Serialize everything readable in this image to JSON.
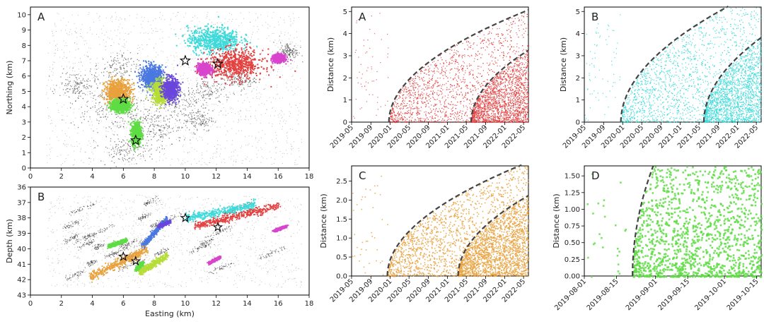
{
  "colors": {
    "red": "#e34040",
    "cyan": "#3fd9d9",
    "orange": "#e8a13c",
    "green": "#5fdc45",
    "blue": "#4a78e0",
    "lime": "#b6dd38",
    "purple": "#6a46dc",
    "magenta": "#d845cc",
    "gray": "#2a2a2a",
    "dash": "#444444"
  },
  "chart_data": [
    {
      "type": "scatter",
      "panel_label": "A",
      "xlabel": "",
      "ylabel": "Northing (km)",
      "xlim": [
        0,
        18
      ],
      "ylim": [
        0,
        10.5
      ],
      "xticks": [
        "0",
        "2",
        "4",
        "6",
        "8",
        "10",
        "12",
        "14",
        "16",
        "18"
      ],
      "yticks": [
        "0",
        "1",
        "2",
        "3",
        "4",
        "5",
        "6",
        "7",
        "8",
        "9",
        "10"
      ],
      "clusters": [
        {
          "color": "cyan",
          "center": [
            11.8,
            8.4
          ],
          "spread": [
            1.4,
            0.7
          ]
        },
        {
          "color": "red",
          "center": [
            13.2,
            6.8
          ],
          "spread": [
            1.5,
            0.8
          ]
        },
        {
          "color": "orange",
          "center": [
            5.6,
            5.0
          ],
          "spread": [
            0.7,
            0.7
          ]
        },
        {
          "color": "blue",
          "center": [
            7.8,
            6.0
          ],
          "spread": [
            0.6,
            0.6
          ]
        },
        {
          "color": "lime",
          "center": [
            8.4,
            5.0
          ],
          "spread": [
            0.5,
            0.6
          ]
        },
        {
          "color": "purple",
          "center": [
            9.0,
            5.2
          ],
          "spread": [
            0.4,
            0.6
          ]
        },
        {
          "color": "green",
          "center": [
            5.8,
            4.1
          ],
          "spread": [
            0.5,
            0.35
          ]
        },
        {
          "color": "green",
          "center": [
            6.8,
            2.3
          ],
          "spread": [
            0.25,
            0.6
          ]
        },
        {
          "color": "magenta",
          "center": [
            11.2,
            6.5
          ],
          "spread": [
            0.35,
            0.3
          ]
        },
        {
          "color": "magenta",
          "center": [
            16.0,
            7.2
          ],
          "spread": [
            0.3,
            0.2
          ]
        }
      ],
      "stars": [
        [
          10.0,
          7.0
        ],
        [
          12.1,
          6.8
        ],
        [
          6.0,
          4.5
        ],
        [
          6.8,
          1.8
        ]
      ]
    },
    {
      "type": "scatter",
      "panel_label": "B",
      "xlabel": "Easting (km)",
      "ylabel": "Depth (km)",
      "xlim": [
        0,
        18
      ],
      "ylim": [
        43,
        36
      ],
      "xticks": [
        "0",
        "2",
        "4",
        "6",
        "8",
        "10",
        "12",
        "14",
        "16",
        "18"
      ],
      "yticks": [
        "36",
        "37",
        "38",
        "39",
        "40",
        "41",
        "42",
        "43"
      ],
      "bands": [
        {
          "color": "cyan",
          "from": [
            10.0,
            38.0
          ],
          "to": [
            14.5,
            37.1
          ],
          "width": 0.28
        },
        {
          "color": "red",
          "from": [
            10.5,
            38.5
          ],
          "to": [
            16.0,
            37.2
          ],
          "width": 0.25
        },
        {
          "color": "blue",
          "from": [
            7.2,
            39.8
          ],
          "to": [
            8.8,
            38.0
          ],
          "width": 0.18
        },
        {
          "color": "purple",
          "from": [
            8.2,
            38.5
          ],
          "to": [
            9.0,
            38.2
          ],
          "width": 0.1
        },
        {
          "color": "green",
          "from": [
            5.0,
            39.8
          ],
          "to": [
            6.2,
            39.4
          ],
          "width": 0.12
        },
        {
          "color": "orange",
          "from": [
            3.8,
            41.8
          ],
          "to": [
            7.5,
            40.0
          ],
          "width": 0.3
        },
        {
          "color": "lime",
          "from": [
            7.0,
            41.5
          ],
          "to": [
            8.8,
            40.4
          ],
          "width": 0.22
        },
        {
          "color": "green",
          "from": [
            6.8,
            41.3
          ],
          "to": [
            7.2,
            40.9
          ],
          "width": 0.12
        },
        {
          "color": "magenta",
          "from": [
            11.5,
            40.9
          ],
          "to": [
            12.2,
            40.5
          ],
          "width": 0.08
        },
        {
          "color": "magenta",
          "from": [
            15.7,
            38.8
          ],
          "to": [
            16.5,
            38.5
          ],
          "width": 0.08
        }
      ],
      "stars": [
        [
          10.0,
          38.0
        ],
        [
          12.1,
          38.6
        ],
        [
          6.0,
          40.5
        ],
        [
          6.8,
          40.8
        ]
      ]
    },
    {
      "type": "scatter",
      "panel_label": "A",
      "color": "red",
      "xlabel": "",
      "ylabel": "Distance (km)",
      "xlim": [
        "2019-05-01",
        "2022-06-01"
      ],
      "ylim": [
        0,
        5.2
      ],
      "xticks": [
        "2019-05",
        "2019-09",
        "2020-01",
        "2020-05",
        "2020-09",
        "2021-01",
        "2021-05",
        "2021-09",
        "2022-01",
        "2022-05"
      ],
      "yticks": [
        "0",
        "1",
        "2",
        "3",
        "4",
        "5"
      ],
      "diffusion_fronts_start": [
        "2019-12-25",
        "2021-06-01"
      ],
      "diffusivity_scale_km": 0.17
    },
    {
      "type": "scatter",
      "panel_label": "B",
      "color": "cyan",
      "xlabel": "",
      "ylabel": "Distance (km)",
      "xlim": [
        "2019-05-01",
        "2022-06-01"
      ],
      "ylim": [
        0,
        5.2
      ],
      "xticks": [
        "2019-05",
        "2019-09",
        "2020-01",
        "2020-05",
        "2020-09",
        "2021-01",
        "2021-05",
        "2021-09",
        "2022-01",
        "2022-05"
      ],
      "yticks": [
        "0",
        "1",
        "2",
        "3",
        "4",
        "5"
      ],
      "diffusion_fronts_start": [
        "2019-12-20",
        "2021-06-01"
      ],
      "diffusivity_scale_km": 0.2
    },
    {
      "type": "scatter",
      "panel_label": "C",
      "color": "orange",
      "xlabel": "",
      "ylabel": "Distance (km)",
      "xlim": [
        "2019-05-01",
        "2022-06-01"
      ],
      "ylim": [
        0,
        2.9
      ],
      "xticks": [
        "2019-05",
        "2019-09",
        "2020-01",
        "2020-05",
        "2020-09",
        "2021-01",
        "2021-05",
        "2021-09",
        "2022-01",
        "2022-05"
      ],
      "yticks": [
        "0.0",
        "0.5",
        "1.0",
        "1.5",
        "2.0",
        "2.5"
      ],
      "diffusion_fronts_start": [
        "2019-12-15",
        "2021-03-10"
      ],
      "diffusivity_scale_km": 0.1
    },
    {
      "type": "scatter",
      "panel_label": "D",
      "color": "green",
      "xlabel": "",
      "ylabel": "Distance (km)",
      "xlim": [
        "2019-08-01",
        "2019-10-17"
      ],
      "ylim": [
        0,
        1.65
      ],
      "xticks": [
        "2019-08-01",
        "2019-08-15",
        "2019-09-01",
        "2019-09-15",
        "2019-10-01",
        "2019-10-15"
      ],
      "yticks": [
        "0.00",
        "0.25",
        "0.50",
        "0.75",
        "1.00",
        "1.25",
        "1.50"
      ],
      "diffusion_fronts_start": [
        "2019-08-22"
      ],
      "diffusivity_scale_km": 0.55
    }
  ]
}
